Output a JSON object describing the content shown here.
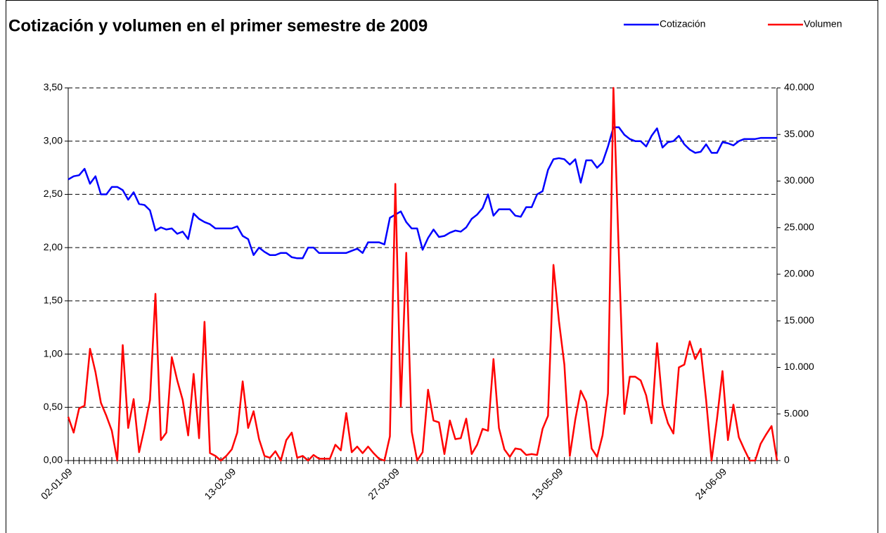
{
  "chart_data": {
    "type": "line",
    "title": "Cotización y volumen en el primer semestre de 2009",
    "legend": "top-right",
    "grid": true,
    "categories": [
      "02-01-09",
      null,
      null,
      null,
      null,
      null,
      null,
      null,
      null,
      null,
      null,
      null,
      null,
      null,
      null,
      null,
      null,
      null,
      null,
      null,
      null,
      null,
      null,
      null,
      null,
      null,
      null,
      null,
      null,
      null,
      "13-02-09",
      null,
      null,
      null,
      null,
      null,
      null,
      null,
      null,
      null,
      null,
      null,
      null,
      null,
      null,
      null,
      null,
      null,
      null,
      null,
      null,
      null,
      null,
      null,
      null,
      null,
      null,
      null,
      null,
      null,
      "27-03-09",
      null,
      null,
      null,
      null,
      null,
      null,
      null,
      null,
      null,
      null,
      null,
      null,
      null,
      null,
      null,
      null,
      null,
      null,
      null,
      null,
      null,
      null,
      null,
      null,
      null,
      null,
      null,
      null,
      null,
      "13-05-09",
      null,
      null,
      null,
      null,
      null,
      null,
      null,
      null,
      null,
      null,
      null,
      null,
      null,
      null,
      null,
      null,
      null,
      null,
      null,
      null,
      null,
      null,
      null,
      null,
      null,
      null,
      null,
      null,
      null,
      "24-06-09",
      null,
      null,
      null,
      null,
      null,
      null,
      null,
      null,
      null,
      null
    ],
    "series": [
      {
        "name": "Cotización",
        "color": "#0000ff",
        "values": [
          2.64,
          2.67,
          2.68,
          2.74,
          2.6,
          2.67,
          2.5,
          2.5,
          2.57,
          2.57,
          2.54,
          2.45,
          2.52,
          2.41,
          2.4,
          2.35,
          2.16,
          2.19,
          2.17,
          2.18,
          2.13,
          2.15,
          2.08,
          2.32,
          2.27,
          2.24,
          2.22,
          2.18,
          2.18,
          2.18,
          2.18,
          2.2,
          2.11,
          2.08,
          1.93,
          2.0,
          1.96,
          1.93,
          1.93,
          1.95,
          1.95,
          1.91,
          1.9,
          1.9,
          2.0,
          2.0,
          1.95,
          1.95,
          1.95,
          1.95,
          1.95,
          1.95,
          1.97,
          1.99,
          1.95,
          2.05,
          2.05,
          2.05,
          2.03,
          2.28,
          2.31,
          2.34,
          2.24,
          2.18,
          2.18,
          1.98,
          2.09,
          2.17,
          2.1,
          2.11,
          2.14,
          2.16,
          2.15,
          2.19,
          2.27,
          2.31,
          2.37,
          2.5,
          2.3,
          2.36,
          2.36,
          2.36,
          2.3,
          2.29,
          2.38,
          2.38,
          2.5,
          2.53,
          2.73,
          2.83,
          2.84,
          2.83,
          2.78,
          2.83,
          2.61,
          2.82,
          2.82,
          2.75,
          2.8,
          2.95,
          3.13,
          3.13,
          3.06,
          3.02,
          3.0,
          3.0,
          2.95,
          3.05,
          3.12,
          2.94,
          2.99,
          3.0,
          3.05,
          2.97,
          2.92,
          2.89,
          2.9,
          2.97,
          2.89,
          2.89,
          2.99,
          2.98,
          2.96,
          3.0,
          3.02,
          3.02,
          3.02,
          3.03,
          3.03,
          3.03,
          3.03
        ]
      },
      {
        "name": "Volumen",
        "color": "#ff0000",
        "axis": "y2",
        "values": [
          4700,
          3000,
          5600,
          5900,
          12000,
          9500,
          6200,
          4800,
          3200,
          0,
          12400,
          3500,
          6600,
          900,
          3500,
          6500,
          17900,
          2200,
          3000,
          11100,
          8600,
          6500,
          2700,
          9300,
          2400,
          14900,
          800,
          500,
          0,
          500,
          1200,
          3000,
          8500,
          3500,
          5300,
          2300,
          500,
          300,
          1000,
          0,
          2200,
          3000,
          300,
          500,
          0,
          600,
          200,
          200,
          200,
          1700,
          1100,
          5100,
          900,
          1500,
          800,
          1500,
          800,
          200,
          0,
          2600,
          29700,
          5800,
          22300,
          3100,
          0,
          900,
          7600,
          4300,
          4100,
          700,
          4300,
          2300,
          2400,
          4500,
          700,
          1700,
          3400,
          3200,
          10900,
          3500,
          1200,
          400,
          1300,
          1200,
          600,
          700,
          600,
          3400,
          4800,
          21000,
          15000,
          10300,
          500,
          4400,
          7500,
          6300,
          1300,
          400,
          2700,
          7200,
          40000,
          22000,
          5000,
          9000,
          9000,
          8600,
          7000,
          4000,
          12600,
          6000,
          4000,
          2900,
          10000,
          10300,
          12800,
          10900,
          12000,
          6500,
          0,
          4500,
          9600,
          2200,
          6000,
          2500,
          1200,
          0,
          0,
          1800,
          2800,
          3700,
          0
        ]
      }
    ],
    "ylim": [
      0,
      3.5
    ],
    "yticks": [
      {
        "value": 0,
        "label": "0,00"
      },
      {
        "value": 0.5,
        "label": "0,50"
      },
      {
        "value": 1,
        "label": "1,00"
      },
      {
        "value": 1.5,
        "label": "1,50"
      },
      {
        "value": 2,
        "label": "2,00"
      },
      {
        "value": 2.5,
        "label": "2,50"
      },
      {
        "value": 3,
        "label": "3,00"
      },
      {
        "value": 3.5,
        "label": "3,50"
      }
    ],
    "y2lim": [
      0,
      40000
    ],
    "y2ticks": [
      0,
      {
        "value": 5000,
        "label": "5.000"
      },
      {
        "value": 10000,
        "label": "10.000"
      },
      {
        "value": 15000,
        "label": "15.000"
      },
      {
        "value": 20000,
        "label": "20.000"
      },
      {
        "value": 25000,
        "label": "25.000"
      },
      {
        "value": 30000,
        "label": "30.000"
      },
      {
        "value": 35000,
        "label": "35.000"
      },
      {
        "value": 40000,
        "label": "40.000"
      }
    ]
  }
}
